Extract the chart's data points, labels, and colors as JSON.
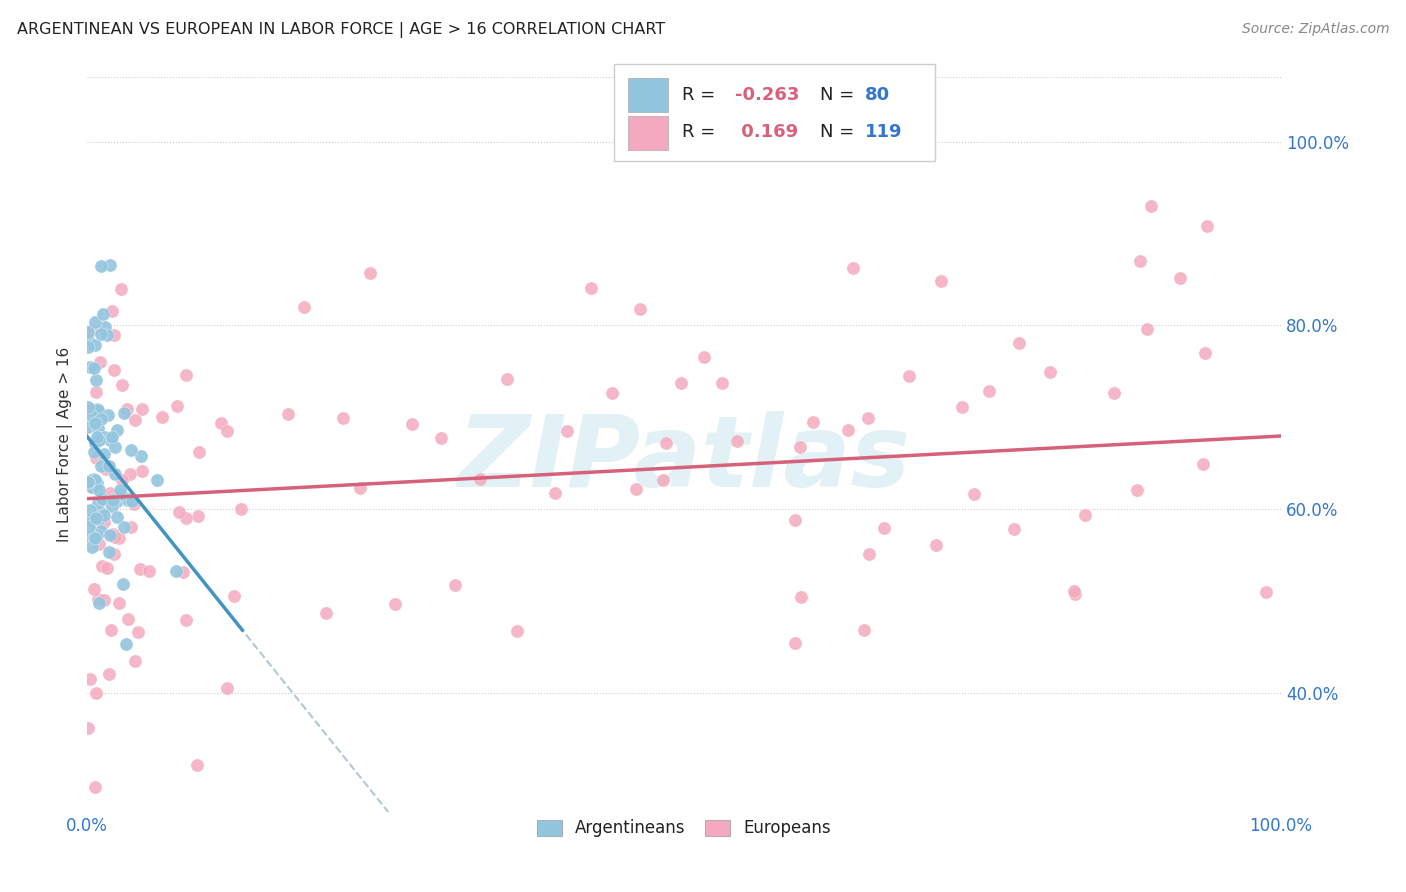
{
  "title": "ARGENTINEAN VS EUROPEAN IN LABOR FORCE | AGE > 16 CORRELATION CHART",
  "source": "Source: ZipAtlas.com",
  "ylabel": "In Labor Force | Age > 16",
  "legend_blue_label": "Argentineans",
  "legend_pink_label": "Europeans",
  "blue_color": "#92c5de",
  "pink_color": "#f4a9be",
  "blue_line_color": "#4393c3",
  "pink_line_color": "#d6617b",
  "dashed_line_color": "#b0c8d8",
  "watermark_color": "#cde8f0",
  "bg_color": "#ffffff",
  "xlim": [
    0.0,
    1.0
  ],
  "ylim": [
    0.27,
    1.07
  ],
  "blue_R": -0.263,
  "pink_R": 0.169,
  "blue_N": 80,
  "pink_N": 119,
  "right_ytick_vals": [
    0.4,
    0.6,
    0.8,
    1.0
  ],
  "right_ytick_labels": [
    "40.0%",
    "60.0%",
    "80.0%",
    "100.0%"
  ]
}
